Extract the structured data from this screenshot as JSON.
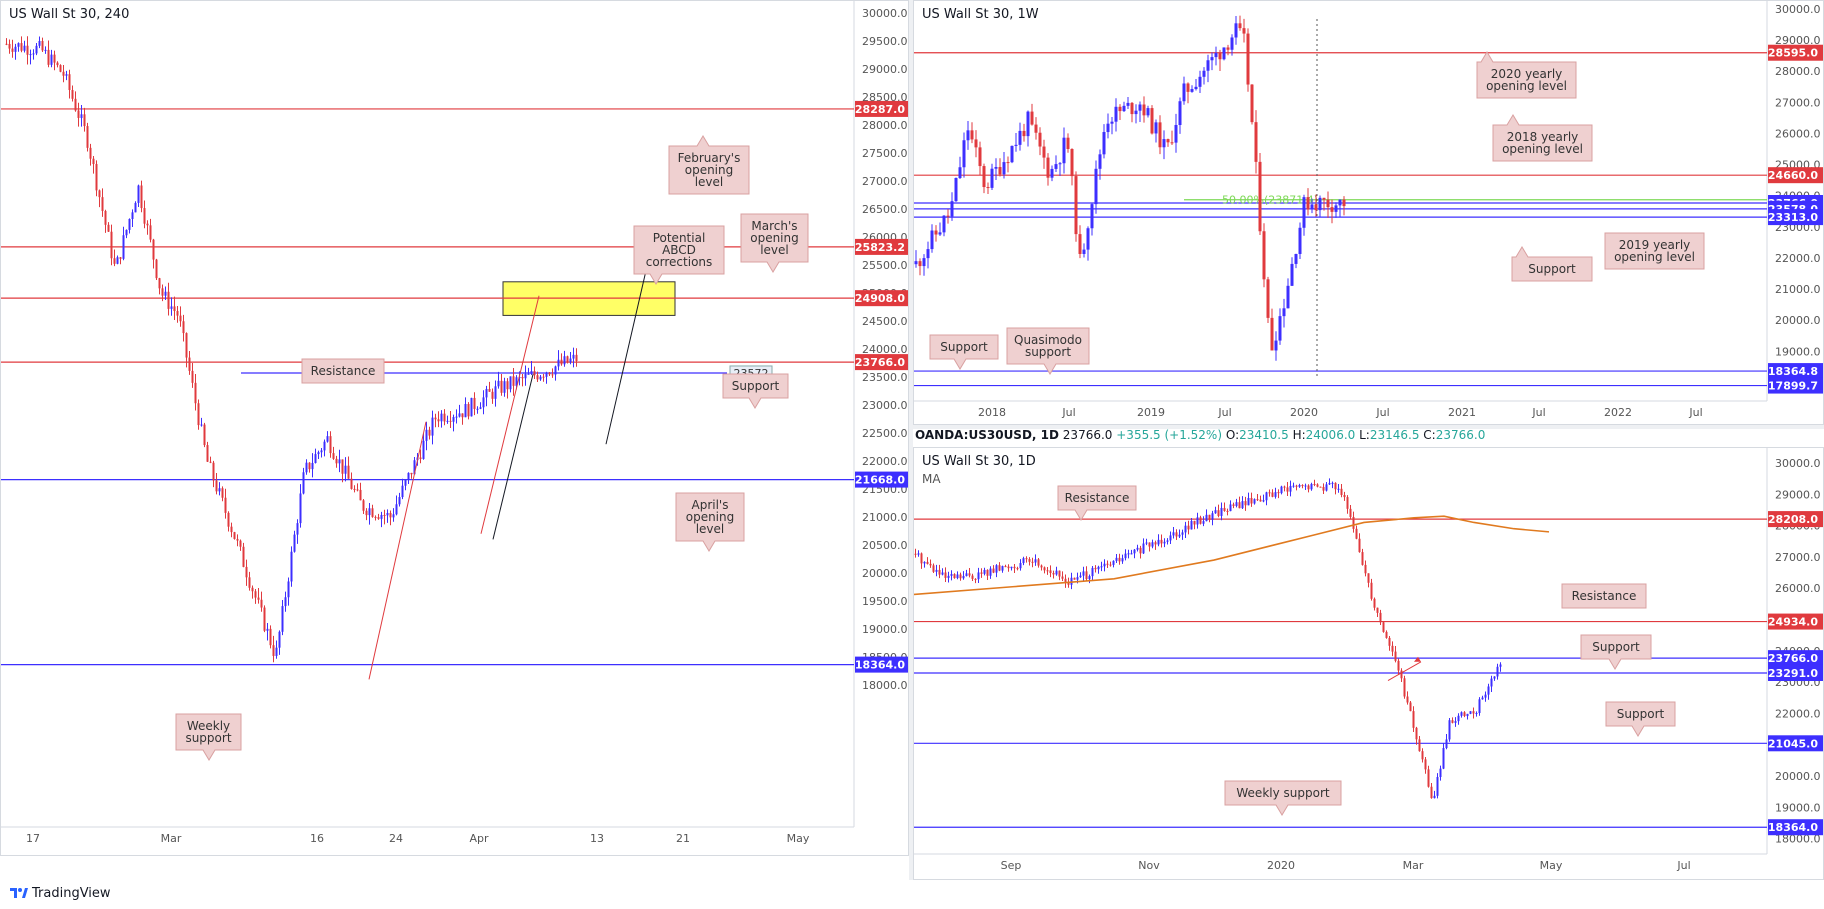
{
  "panels": {
    "h4": {
      "title": "US Wall St 30, 240",
      "y_ticks": [
        "30000.0",
        "29500.0",
        "29000.0",
        "28500.0",
        "28000.0",
        "27500.0",
        "27000.0",
        "26500.0",
        "26000.0",
        "25500.0",
        "25000.0",
        "24500.0",
        "24000.0",
        "23500.0",
        "23000.0",
        "22500.0",
        "22000.0",
        "21500.0",
        "21000.0",
        "20500.0",
        "20000.0",
        "19500.0",
        "19000.0",
        "18500.0",
        "18000.0"
      ],
      "x_ticks": [
        "17",
        "Mar",
        "16",
        "24",
        "Apr",
        "13",
        "21",
        "May"
      ],
      "levels": [
        {
          "label": "28287.0",
          "color": "#e03a3e"
        },
        {
          "label": "25823.2",
          "color": "#e03a3e"
        },
        {
          "label": "24908.0",
          "color": "#e03a3e"
        },
        {
          "label": "23766.0",
          "color": "#e03a3e"
        },
        {
          "label": "21668.0",
          "color": "#3d2fff"
        },
        {
          "label": "18364.0",
          "color": "#3d2fff"
        }
      ],
      "support_value_tag": "23572",
      "callouts": {
        "february": "February's opening level",
        "march": "March's opening level",
        "abcd": "Potential ABCD corrections",
        "resistance": "Resistance",
        "support": "Support",
        "april": "April's opening level",
        "weekly_support": "Weekly support"
      }
    },
    "weekly": {
      "title": "US Wall St 30, 1W",
      "y_ticks": [
        "30000.0",
        "29000.0",
        "28000.0",
        "27000.0",
        "26000.0",
        "25000.0",
        "24000.0",
        "23000.0",
        "22000.0",
        "21000.0",
        "20000.0",
        "19000.0",
        "18000.0"
      ],
      "x_ticks": [
        "2018",
        "Jul",
        "2019",
        "Jul",
        "2020",
        "Jul",
        "2021",
        "Jul",
        "2022",
        "Jul"
      ],
      "levels": [
        {
          "label": "28595.0",
          "color": "#e03a3e"
        },
        {
          "label": "24660.0",
          "color": "#e03a3e"
        },
        {
          "label": "23766.0",
          "color": "#3d2fff"
        },
        {
          "label": "23578.0",
          "color": "#3d2fff"
        },
        {
          "label": "23313.0",
          "color": "#3d2fff"
        },
        {
          "label": "18364.8",
          "color": "#3d2fff"
        },
        {
          "label": "17899.7",
          "color": "#3d2fff"
        }
      ],
      "fib_label": "50.00%(23871.4)",
      "callouts": {
        "y2020": "2020 yearly opening level",
        "y2018": "2018 yearly opening level",
        "support_right": "Support",
        "y2019": "2019 yearly opening level",
        "support_left": "Support",
        "quasimodo": "Quasimodo support"
      }
    },
    "daily": {
      "title": "US Wall St 30, 1D",
      "subtitle": "MA",
      "y_ticks": [
        "30000.0",
        "29000.0",
        "28000.0",
        "27000.0",
        "26000.0",
        "25000.0",
        "24000.0",
        "23000.0",
        "22000.0",
        "21000.0",
        "20000.0",
        "19000.0",
        "18000.0"
      ],
      "x_ticks": [
        "Sep",
        "Nov",
        "2020",
        "Mar",
        "May",
        "Jul"
      ],
      "levels": [
        {
          "label": "28208.0",
          "color": "#e03a3e"
        },
        {
          "label": "24934.0",
          "color": "#e03a3e"
        },
        {
          "label": "23766.0",
          "color": "#3d2fff"
        },
        {
          "label": "23291.0",
          "color": "#3d2fff"
        },
        {
          "label": "21045.0",
          "color": "#3d2fff"
        },
        {
          "label": "18364.0",
          "color": "#3d2fff"
        }
      ],
      "callouts": {
        "resistance_top": "Resistance",
        "resistance": "Resistance",
        "support_upper": "Support",
        "support_lower": "Support",
        "weekly_support": "Weekly support"
      }
    }
  },
  "info_bar": {
    "symbol": "OANDA:US30USD, 1D",
    "last": "23766.0",
    "change": "+355.5 (+1.52%)",
    "o_label": "O:",
    "o": "23410.5",
    "h_label": "H:",
    "h": "24006.0",
    "l_label": "L:",
    "l": "23146.5",
    "c_label": "C:",
    "c": "23766.0"
  },
  "brand": "TradingView",
  "colors": {
    "up": "#3d2fff",
    "down": "#e03a3e",
    "resistance": "#e03a3e",
    "support": "#3d2fff",
    "fib": "#7ed957",
    "ma": "#e07a1f",
    "zone": "#ffff66",
    "callout_bg": "#efd0d0",
    "callout_border": "#d9a0a0"
  }
}
